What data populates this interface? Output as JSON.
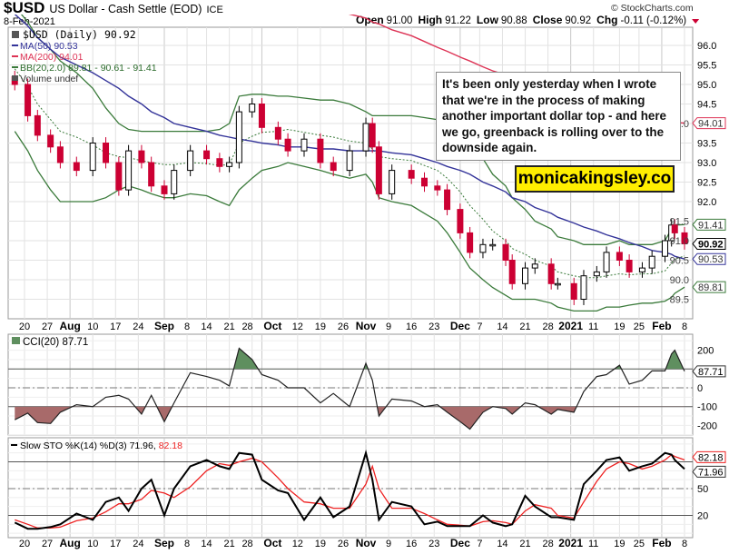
{
  "header": {
    "symbol": "$USD",
    "name": "US Dollar - Cash Settle (EOD)",
    "exchange": "ICE",
    "date": "8-Feb-2021",
    "copyright": "© StockCharts.com",
    "ohlc": [
      {
        "label": "Open",
        "value": "91.00"
      },
      {
        "label": "High",
        "value": "91.22"
      },
      {
        "label": "Low",
        "value": "90.88"
      },
      {
        "label": "Close",
        "value": "90.92"
      },
      {
        "label": "Chg",
        "value": "-0.11 (-0.12%)"
      }
    ],
    "change_direction": "down"
  },
  "legend": {
    "price": "$USD (Daily) 90.92",
    "ma50": "MA(50) 90.53",
    "ma200": "MA(200) 94.01",
    "bb": "BB(20,2.0) 89.81 - 90.61 - 91.41",
    "volume": "Volume undef",
    "cci": "CCI(20) 87.71",
    "sto_prefix": "Slow STO %K(14) %D(3) 71.96,",
    "sto_d": "82.18"
  },
  "annotation": {
    "text": "It's been only yesterday when I wrote that we're in the process of making another important dollar top - and here we go, greenback is rolling over to the downside again.",
    "watermark": "monicakingsley.co"
  },
  "colors": {
    "up_candle": "#000000",
    "down_candle": "#cc0033",
    "ma50": "#333399",
    "ma200": "#dd3355",
    "bb": "#3a7a3a",
    "cci_pos_fill": "#5f8f5f",
    "cci_neg_fill": "#a86a6a",
    "sto_k": "#000000",
    "sto_d": "#ee2222",
    "watermark_bg": "#ffee00"
  },
  "chart_data": [
    {
      "type": "candlestick",
      "title": "$USD US Dollar - Cash Settle (EOD)",
      "ylim": [
        89.0,
        96.8
      ],
      "y_ticks": [
        "96.0",
        "95.5",
        "95.0",
        "94.5",
        "94.0",
        "93.5",
        "93.0",
        "92.5",
        "92.0",
        "91.5",
        "91.0",
        "90.5",
        "90.0",
        "89.5"
      ],
      "x_ticks": [
        {
          "label": "20",
          "date": "2020-07-20",
          "bold": false
        },
        {
          "label": "27",
          "date": "2020-07-27",
          "bold": false
        },
        {
          "label": "Aug",
          "date": "2020-08-03",
          "bold": true
        },
        {
          "label": "10",
          "date": "2020-08-10",
          "bold": false
        },
        {
          "label": "17",
          "date": "2020-08-17",
          "bold": false
        },
        {
          "label": "24",
          "date": "2020-08-24",
          "bold": false
        },
        {
          "label": "Sep",
          "date": "2020-09-01",
          "bold": true
        },
        {
          "label": "8",
          "date": "2020-09-08",
          "bold": false
        },
        {
          "label": "14",
          "date": "2020-09-14",
          "bold": false
        },
        {
          "label": "21",
          "date": "2020-09-21",
          "bold": false
        },
        {
          "label": "28",
          "date": "2020-09-28",
          "bold": false
        },
        {
          "label": "Oct",
          "date": "2020-10-01",
          "bold": true
        },
        {
          "label": "12",
          "date": "2020-10-12",
          "bold": false
        },
        {
          "label": "19",
          "date": "2020-10-19",
          "bold": false
        },
        {
          "label": "26",
          "date": "2020-10-26",
          "bold": false
        },
        {
          "label": "Nov",
          "date": "2020-11-02",
          "bold": true
        },
        {
          "label": "9",
          "date": "2020-11-09",
          "bold": false
        },
        {
          "label": "16",
          "date": "2020-11-16",
          "bold": false
        },
        {
          "label": "23",
          "date": "2020-11-23",
          "bold": false
        },
        {
          "label": "Dec",
          "date": "2020-12-01",
          "bold": true
        },
        {
          "label": "7",
          "date": "2020-12-07",
          "bold": false
        },
        {
          "label": "14",
          "date": "2020-12-14",
          "bold": false
        },
        {
          "label": "21",
          "date": "2020-12-21",
          "bold": false
        },
        {
          "label": "28",
          "date": "2020-12-28",
          "bold": false
        },
        {
          "label": "2021",
          "date": "2021-01-04",
          "bold": true
        },
        {
          "label": "11",
          "date": "2021-01-11",
          "bold": false
        },
        {
          "label": "19",
          "date": "2021-01-19",
          "bold": false
        },
        {
          "label": "25",
          "date": "2021-01-25",
          "bold": false
        },
        {
          "label": "Feb",
          "date": "2021-02-01",
          "bold": true
        },
        {
          "label": "8",
          "date": "2021-02-08",
          "bold": false
        }
      ],
      "dates": [
        "2020-07-17",
        "2020-07-21",
        "2020-07-24",
        "2020-07-28",
        "2020-07-31",
        "2020-08-05",
        "2020-08-10",
        "2020-08-14",
        "2020-08-18",
        "2020-08-21",
        "2020-08-25",
        "2020-08-28",
        "2020-09-01",
        "2020-09-04",
        "2020-09-09",
        "2020-09-14",
        "2020-09-18",
        "2020-09-21",
        "2020-09-24",
        "2020-09-28",
        "2020-10-01",
        "2020-10-06",
        "2020-10-09",
        "2020-10-14",
        "2020-10-19",
        "2020-10-23",
        "2020-10-28",
        "2020-11-02",
        "2020-11-04",
        "2020-11-06",
        "2020-11-10",
        "2020-11-16",
        "2020-11-20",
        "2020-11-24",
        "2020-11-27",
        "2020-12-01",
        "2020-12-04",
        "2020-12-08",
        "2020-12-11",
        "2020-12-15",
        "2020-12-17",
        "2020-12-21",
        "2020-12-24",
        "2020-12-29",
        "2020-12-31",
        "2021-01-05",
        "2021-01-08",
        "2021-01-12",
        "2021-01-15",
        "2021-01-19",
        "2021-01-22",
        "2021-01-26",
        "2021-01-29",
        "2021-02-02",
        "2021-02-04",
        "2021-02-05",
        "2021-02-08"
      ],
      "close": [
        95.0,
        94.2,
        93.7,
        93.4,
        93.0,
        92.8,
        93.5,
        93.0,
        92.3,
        93.3,
        93.0,
        92.4,
        92.2,
        92.8,
        93.3,
        93.1,
        92.9,
        93.0,
        94.3,
        94.5,
        93.9,
        93.6,
        93.3,
        93.6,
        93.0,
        92.8,
        93.3,
        94.0,
        93.4,
        92.2,
        92.8,
        92.6,
        92.4,
        92.3,
        91.8,
        91.2,
        90.7,
        90.9,
        90.9,
        90.5,
        89.9,
        90.3,
        90.4,
        89.9,
        89.9,
        89.5,
        90.1,
        90.2,
        90.7,
        90.5,
        90.2,
        90.3,
        90.6,
        91.0,
        91.4,
        91.2,
        90.92
      ],
      "series": [
        {
          "name": "MA(50)",
          "values": [
            96.8,
            96.5,
            96.2,
            95.9,
            95.7,
            95.5,
            95.3,
            95.1,
            94.9,
            94.7,
            94.5,
            94.3,
            94.15,
            94.0,
            93.9,
            93.8,
            93.7,
            93.65,
            93.6,
            93.55,
            93.5,
            93.45,
            93.4,
            93.4,
            93.35,
            93.35,
            93.3,
            93.3,
            93.3,
            93.3,
            93.25,
            93.2,
            93.1,
            93.0,
            92.9,
            92.8,
            92.7,
            92.5,
            92.4,
            92.25,
            92.1,
            92.0,
            91.85,
            91.7,
            91.6,
            91.45,
            91.35,
            91.25,
            91.15,
            91.05,
            90.95,
            90.85,
            90.75,
            90.7,
            90.65,
            90.6,
            90.53
          ]
        },
        {
          "name": "MA(200)",
          "values": [
            null,
            null,
            null,
            null,
            null,
            null,
            null,
            null,
            null,
            null,
            null,
            null,
            null,
            null,
            null,
            null,
            null,
            null,
            null,
            null,
            null,
            null,
            null,
            null,
            null,
            96.9,
            96.8,
            96.7,
            96.6,
            96.55,
            96.4,
            96.25,
            96.1,
            95.95,
            95.85,
            95.7,
            95.6,
            95.45,
            95.35,
            95.25,
            95.15,
            95.05,
            94.95,
            94.85,
            94.75,
            94.65,
            94.55,
            94.45,
            94.4,
            94.3,
            94.25,
            94.2,
            94.15,
            94.1,
            94.05,
            94.03,
            94.01
          ]
        },
        {
          "name": "BB upper",
          "values": [
            97.0,
            96.6,
            96.2,
            95.9,
            95.6,
            95.3,
            94.9,
            94.4,
            94.0,
            93.85,
            93.8,
            93.8,
            93.8,
            93.8,
            93.8,
            93.8,
            93.85,
            94.0,
            94.7,
            94.75,
            94.75,
            94.7,
            94.7,
            94.65,
            94.6,
            94.6,
            94.5,
            94.3,
            94.2,
            94.2,
            94.2,
            94.2,
            94.15,
            94.1,
            94.0,
            93.8,
            93.5,
            93.1,
            92.7,
            92.4,
            92.1,
            91.8,
            91.5,
            91.3,
            91.1,
            91.0,
            90.9,
            90.9,
            90.9,
            91.0,
            90.9,
            90.9,
            90.9,
            91.0,
            91.3,
            91.4,
            91.41
          ]
        },
        {
          "name": "BB lower",
          "values": [
            93.8,
            93.3,
            92.8,
            92.3,
            92.0,
            92.0,
            92.0,
            92.1,
            92.3,
            92.4,
            92.3,
            92.2,
            92.1,
            92.1,
            92.2,
            92.15,
            92.0,
            91.9,
            92.3,
            92.6,
            92.8,
            92.9,
            93.0,
            92.9,
            92.8,
            92.7,
            92.6,
            92.7,
            92.5,
            92.1,
            92.0,
            91.9,
            91.7,
            91.5,
            91.2,
            90.7,
            90.3,
            90.0,
            89.8,
            89.6,
            89.5,
            89.5,
            89.5,
            89.4,
            89.3,
            89.2,
            89.2,
            89.2,
            89.3,
            89.3,
            89.35,
            89.4,
            89.4,
            89.45,
            89.55,
            89.65,
            89.81
          ]
        }
      ],
      "last_value_badges": [
        {
          "value": "94.01",
          "color": "#dd3355"
        },
        {
          "value": "91.41",
          "color": "#3a7a3a"
        },
        {
          "value": "90.92",
          "color": "#000000"
        },
        {
          "value": "90.53",
          "color": "#333399"
        },
        {
          "value": "89.81",
          "color": "#3a7a3a"
        }
      ]
    },
    {
      "type": "area",
      "name": "CCI(20)",
      "ylim": [
        -280,
        290
      ],
      "y_ticks": [
        "200",
        "0",
        "-100",
        "-200"
      ],
      "reference_lines": [
        100,
        0,
        -100
      ],
      "values": [
        -170,
        -135,
        -185,
        -190,
        -130,
        -90,
        -100,
        -50,
        -40,
        -60,
        -140,
        -40,
        -180,
        -80,
        80,
        60,
        40,
        10,
        210,
        150,
        70,
        40,
        0,
        0,
        -80,
        -30,
        -100,
        130,
        40,
        -150,
        -60,
        -70,
        -100,
        -90,
        -130,
        -180,
        -220,
        -130,
        -100,
        -110,
        -140,
        -80,
        -90,
        -140,
        -115,
        -130,
        -20,
        60,
        70,
        120,
        20,
        40,
        90,
        90,
        180,
        200,
        87.71
      ],
      "last_value": "87.71"
    },
    {
      "type": "line",
      "name": "Slow STO",
      "ylim": [
        -5,
        107
      ],
      "y_ticks": [
        "50",
        "20"
      ],
      "reference_lines": [
        80,
        50,
        20
      ],
      "series": [
        {
          "name": "%K(14)",
          "values": [
            12,
            5,
            5,
            7,
            10,
            22,
            15,
            35,
            40,
            25,
            50,
            60,
            20,
            50,
            75,
            82,
            75,
            72,
            90,
            88,
            60,
            48,
            45,
            15,
            40,
            18,
            30,
            90,
            60,
            15,
            35,
            30,
            10,
            13,
            8,
            8,
            8,
            20,
            12,
            8,
            10,
            42,
            30,
            18,
            18,
            15,
            55,
            70,
            82,
            85,
            70,
            75,
            78,
            90,
            88,
            82,
            71.96
          ]
        },
        {
          "name": "%D(3)",
          "values": [
            15,
            10,
            6,
            6,
            7,
            14,
            17,
            24,
            33,
            33,
            38,
            48,
            45,
            40,
            52,
            70,
            78,
            76,
            80,
            84,
            80,
            62,
            50,
            35,
            33,
            28,
            28,
            55,
            75,
            50,
            28,
            28,
            22,
            15,
            10,
            9,
            8,
            13,
            14,
            12,
            10,
            25,
            32,
            28,
            20,
            17,
            35,
            58,
            72,
            80,
            78,
            72,
            75,
            82,
            88,
            86,
            82.18
          ]
        }
      ],
      "last_values": [
        "82.18",
        "71.96"
      ]
    }
  ]
}
